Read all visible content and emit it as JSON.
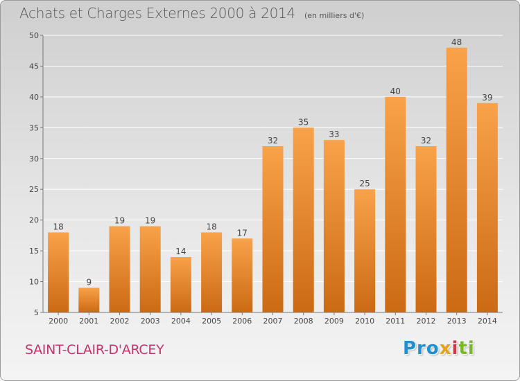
{
  "header": {
    "title": "Achats et Charges Externes 2000 à 2014",
    "subtitle": "(en milliers d'€)"
  },
  "footer": {
    "commune": "SAINT-CLAIR-D'ARCEY",
    "logo": [
      "Pro",
      "x",
      "i",
      "ti"
    ]
  },
  "colors": {
    "bar_light": "#f8a24a",
    "bar_dark": "#cc6a14",
    "commune_text": "#c8336c"
  },
  "chart_data": {
    "type": "bar",
    "title": "Achats et Charges Externes 2000 à 2014",
    "subtitle": "(en milliers d'€)",
    "categories": [
      "2000",
      "2001",
      "2002",
      "2003",
      "2004",
      "2005",
      "2006",
      "2007",
      "2008",
      "2009",
      "2010",
      "2011",
      "2012",
      "2013",
      "2014"
    ],
    "values": [
      18,
      9,
      19,
      19,
      14,
      18,
      17,
      32,
      35,
      33,
      25,
      40,
      32,
      48,
      39
    ],
    "ylim": [
      5,
      50
    ],
    "yticks": [
      5,
      10,
      15,
      20,
      25,
      30,
      35,
      40,
      45,
      50
    ],
    "grid": true,
    "data_labels": true
  }
}
